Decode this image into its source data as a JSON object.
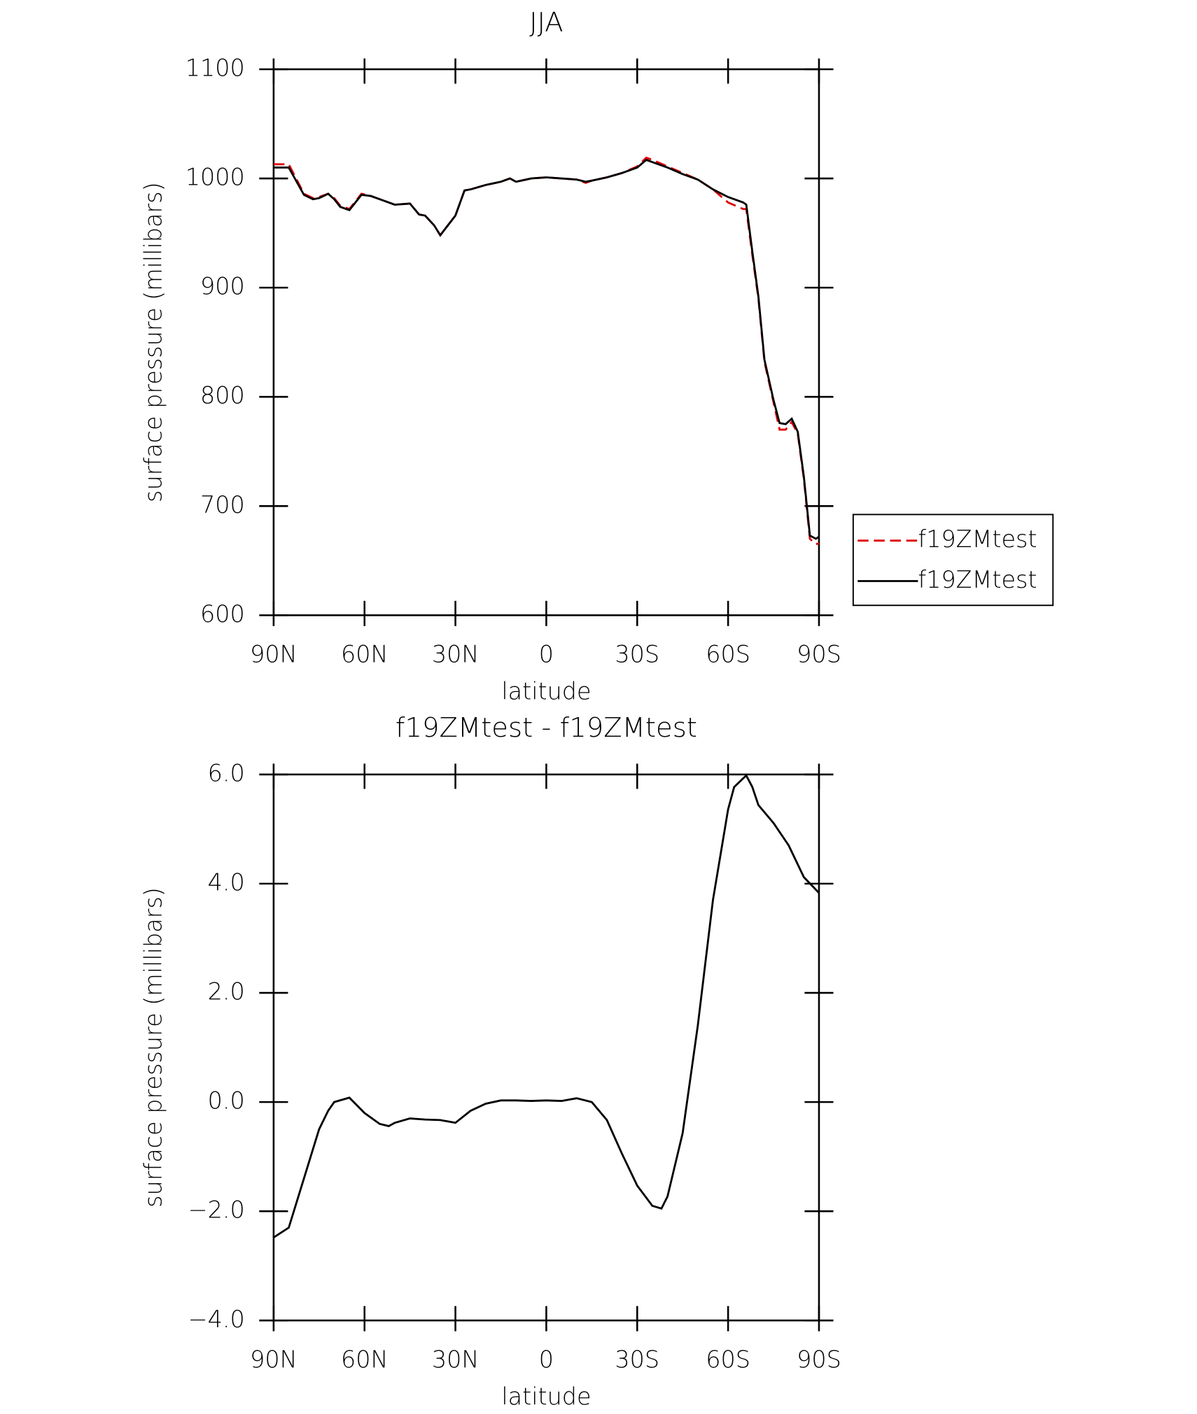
{
  "chart_data": [
    {
      "type": "line",
      "title": "JJA",
      "xlabel": "latitude",
      "ylabel": "surface pressure (millibars)",
      "x": [
        90,
        85,
        80,
        77,
        75,
        72,
        70,
        68,
        65,
        61,
        58,
        55,
        50,
        45,
        42,
        40,
        37,
        35,
        30,
        27,
        25,
        20,
        15,
        12,
        10,
        5,
        0,
        -5,
        -10,
        -13,
        -15,
        -20,
        -25,
        -30,
        -33,
        -35,
        -40,
        -45,
        -50,
        -55,
        -60,
        -65,
        -66,
        -68,
        -70,
        -72,
        -75,
        -77,
        -79,
        -81,
        -83,
        -85,
        -87,
        -89,
        -90
      ],
      "series": [
        {
          "name": "f19ZMtest",
          "color": "#e00000",
          "dash": true,
          "values": [
            1013,
            1013,
            986,
            982,
            983,
            986,
            982,
            975,
            972,
            986,
            984,
            981,
            976,
            977,
            967,
            966,
            957,
            948,
            966,
            989,
            990,
            994,
            997,
            1000,
            997,
            1000,
            1001,
            1000,
            999,
            996,
            998,
            1001,
            1005,
            1011,
            1019,
            1017,
            1011,
            1005,
            999,
            990,
            978,
            972,
            972,
            930,
            890,
            832,
            795,
            770,
            770,
            777,
            766,
            725,
            670,
            665,
            666
          ]
        },
        {
          "name": "f19ZMtest",
          "color": "#000000",
          "dash": false,
          "values": [
            1010,
            1010,
            985,
            981,
            982,
            986,
            981,
            974,
            971,
            985,
            984,
            981,
            976,
            977,
            967,
            966,
            957,
            948,
            966,
            989,
            990,
            994,
            997,
            1000,
            997,
            1000,
            1001,
            1000,
            999,
            997,
            998,
            1001,
            1005,
            1010,
            1017,
            1015,
            1010,
            1004,
            999,
            990,
            983,
            978,
            976,
            933,
            892,
            834,
            797,
            776,
            775,
            780,
            768,
            727,
            673,
            670,
            672
          ]
        }
      ],
      "xlim": [
        90,
        -90
      ],
      "xticks": [
        {
          "value": 90,
          "label": "90N"
        },
        {
          "value": 60,
          "label": "60N"
        },
        {
          "value": 30,
          "label": "30N"
        },
        0,
        {
          "value": -30,
          "label": "30S"
        },
        {
          "value": -60,
          "label": "60S"
        },
        {
          "value": -90,
          "label": "90S"
        }
      ],
      "ylim": [
        600,
        1100
      ],
      "yticks": [
        600,
        700,
        800,
        900,
        1000,
        1100
      ],
      "legend": "right"
    },
    {
      "type": "line",
      "title": "f19ZMtest - f19ZMtest",
      "xlabel": "latitude",
      "ylabel": "surface pressure (millibars)",
      "x": [
        90,
        85,
        80,
        75,
        72,
        70,
        65,
        60,
        55,
        52,
        50,
        45,
        40,
        35,
        30,
        25,
        20,
        15,
        10,
        5,
        0,
        -5,
        -10,
        -15,
        -20,
        -25,
        -30,
        -35,
        -38,
        -40,
        -45,
        -50,
        -55,
        -60,
        -62,
        -65,
        -66,
        -68,
        -70,
        -75,
        -80,
        -85,
        -90
      ],
      "series": [
        {
          "color": "#000000",
          "dash": false,
          "values": [
            -2.48,
            -2.3,
            -1.4,
            -0.5,
            -0.16,
            0.0,
            0.08,
            -0.2,
            -0.4,
            -0.44,
            -0.38,
            -0.3,
            -0.32,
            -0.33,
            -0.38,
            -0.16,
            -0.03,
            0.03,
            0.03,
            0.02,
            0.03,
            0.02,
            0.07,
            0.0,
            -0.33,
            -0.95,
            -1.53,
            -1.9,
            -1.95,
            -1.73,
            -0.57,
            1.4,
            3.7,
            5.36,
            5.77,
            5.93,
            5.98,
            5.77,
            5.44,
            5.11,
            4.7,
            4.12,
            3.83
          ]
        }
      ],
      "xlim": [
        90,
        -90
      ],
      "xticks": [
        {
          "value": 90,
          "label": "90N"
        },
        {
          "value": 60,
          "label": "60N"
        },
        {
          "value": 30,
          "label": "30N"
        },
        0,
        {
          "value": -30,
          "label": "30S"
        },
        {
          "value": -60,
          "label": "60S"
        },
        {
          "value": -90,
          "label": "90S"
        }
      ],
      "ylim": [
        -4,
        6
      ],
      "yticks": [
        {
          "value": -4,
          "label": "−4.0"
        },
        {
          "value": -2,
          "label": "−2.0"
        },
        {
          "value": 0,
          "label": "0.0"
        },
        {
          "value": 2,
          "label": "2.0"
        },
        {
          "value": 4,
          "label": "4.0"
        },
        {
          "value": 6,
          "label": "6.0"
        }
      ]
    }
  ]
}
